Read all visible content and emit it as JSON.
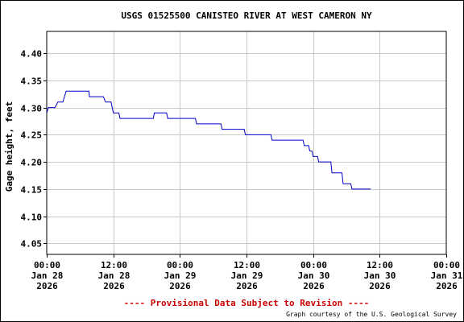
{
  "chart_data": {
    "type": "line",
    "title": "USGS 01525500 CANISTEO RIVER AT WEST CAMERON NY",
    "ylabel": "Gage height, feet",
    "xlabel": "",
    "ylim": [
      4.03,
      4.44
    ],
    "yticks": [
      4.05,
      4.1,
      4.15,
      4.2,
      4.25,
      4.3,
      4.35,
      4.4
    ],
    "ytick_labels": [
      "4.05",
      "4.10",
      "4.15",
      "4.20",
      "4.25",
      "4.30",
      "4.35",
      "4.40"
    ],
    "xlim_hours": [
      0,
      72
    ],
    "xticks": [
      {
        "hour": 0,
        "lines": [
          "00:00",
          "Jan 28",
          "2026"
        ]
      },
      {
        "hour": 12,
        "lines": [
          "12:00",
          "Jan 28",
          "2026"
        ]
      },
      {
        "hour": 24,
        "lines": [
          "00:00",
          "Jan 29",
          "2026"
        ]
      },
      {
        "hour": 36,
        "lines": [
          "12:00",
          "Jan 29",
          "2026"
        ]
      },
      {
        "hour": 48,
        "lines": [
          "00:00",
          "Jan 30",
          "2026"
        ]
      },
      {
        "hour": 60,
        "lines": [
          "12:00",
          "Jan 30",
          "2026"
        ]
      },
      {
        "hour": 72,
        "lines": [
          "00:00",
          "Jan 31",
          "2026"
        ]
      }
    ],
    "grid": true,
    "line_color": "#0000cc",
    "series": [
      {
        "points": [
          [
            0.0,
            4.29
          ],
          [
            0.3,
            4.3
          ],
          [
            1.5,
            4.3
          ],
          [
            2.0,
            4.31
          ],
          [
            2.9,
            4.31
          ],
          [
            3.2,
            4.32
          ],
          [
            3.5,
            4.33
          ],
          [
            7.6,
            4.33
          ],
          [
            7.7,
            4.32
          ],
          [
            10.2,
            4.32
          ],
          [
            10.6,
            4.31
          ],
          [
            11.6,
            4.31
          ],
          [
            11.8,
            4.3
          ],
          [
            12.0,
            4.29
          ],
          [
            13.0,
            4.29
          ],
          [
            13.2,
            4.28
          ],
          [
            19.2,
            4.28
          ],
          [
            19.4,
            4.29
          ],
          [
            21.6,
            4.29
          ],
          [
            21.8,
            4.28
          ],
          [
            26.8,
            4.28
          ],
          [
            27.0,
            4.27
          ],
          [
            31.4,
            4.27
          ],
          [
            31.6,
            4.26
          ],
          [
            35.6,
            4.26
          ],
          [
            35.8,
            4.25
          ],
          [
            40.4,
            4.25
          ],
          [
            40.6,
            4.24
          ],
          [
            46.2,
            4.24
          ],
          [
            46.4,
            4.23
          ],
          [
            47.2,
            4.23
          ],
          [
            47.4,
            4.22
          ],
          [
            47.8,
            4.22
          ],
          [
            48.0,
            4.21
          ],
          [
            48.8,
            4.21
          ],
          [
            49.0,
            4.2
          ],
          [
            51.2,
            4.2
          ],
          [
            51.4,
            4.18
          ],
          [
            53.2,
            4.18
          ],
          [
            53.4,
            4.16
          ],
          [
            54.8,
            4.16
          ],
          [
            55.0,
            4.15
          ],
          [
            58.4,
            4.15
          ]
        ]
      }
    ]
  },
  "footer": {
    "provisional_text": "---- Provisional Data Subject to Revision ----",
    "provisional_color": "#cc0000",
    "credit_text": "Graph courtesy of the U.S. Geological Survey"
  }
}
